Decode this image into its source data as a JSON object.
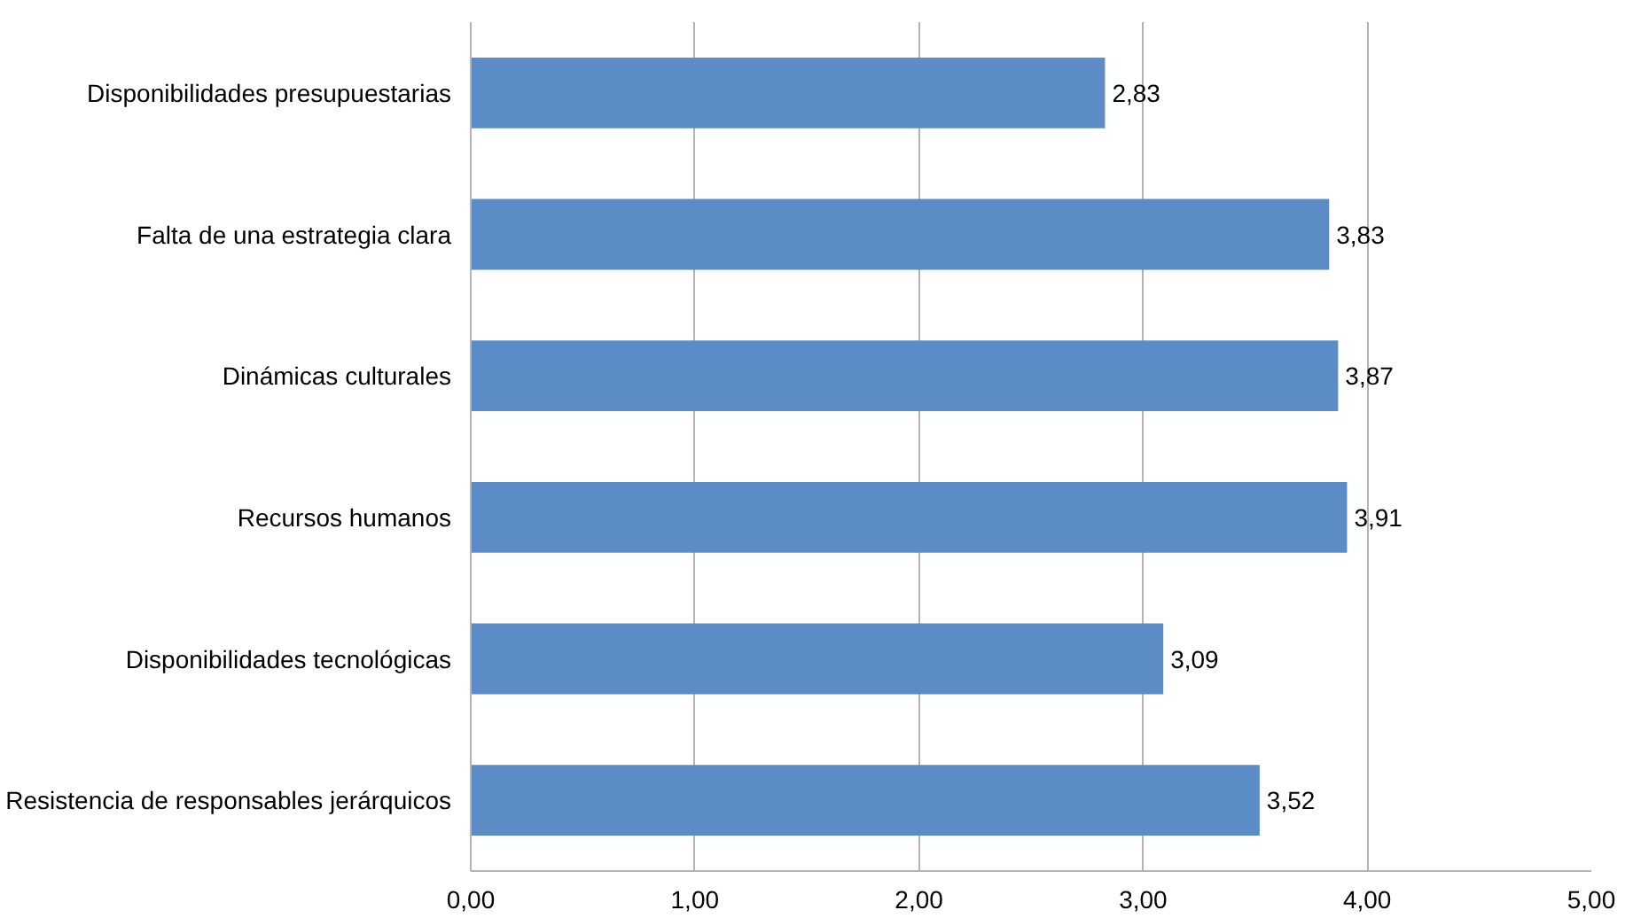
{
  "chart_data": {
    "type": "bar",
    "orientation": "horizontal",
    "categories": [
      "Disponibilidades presupuestarias",
      "Falta de una estrategia clara",
      "Dinámicas culturales",
      "Recursos humanos",
      "Disponibilidades tecnológicas",
      "Resistencia de responsables jerárquicos"
    ],
    "values": [
      2.83,
      3.83,
      3.87,
      3.91,
      3.09,
      3.52
    ],
    "value_labels": [
      "2,83",
      "3,83",
      "3,87",
      "3,91",
      "3,09",
      "3,52"
    ],
    "color": "#5b8cc5",
    "xlim": [
      0,
      5
    ],
    "xticks": [
      {
        "value": 0,
        "label": "0,00"
      },
      {
        "value": 1,
        "label": "1,00"
      },
      {
        "value": 2,
        "label": "2,00"
      },
      {
        "value": 3,
        "label": "3,00"
      },
      {
        "value": 4,
        "label": "4,00"
      },
      {
        "value": 5,
        "label": "5,00"
      }
    ],
    "grid": "x"
  }
}
